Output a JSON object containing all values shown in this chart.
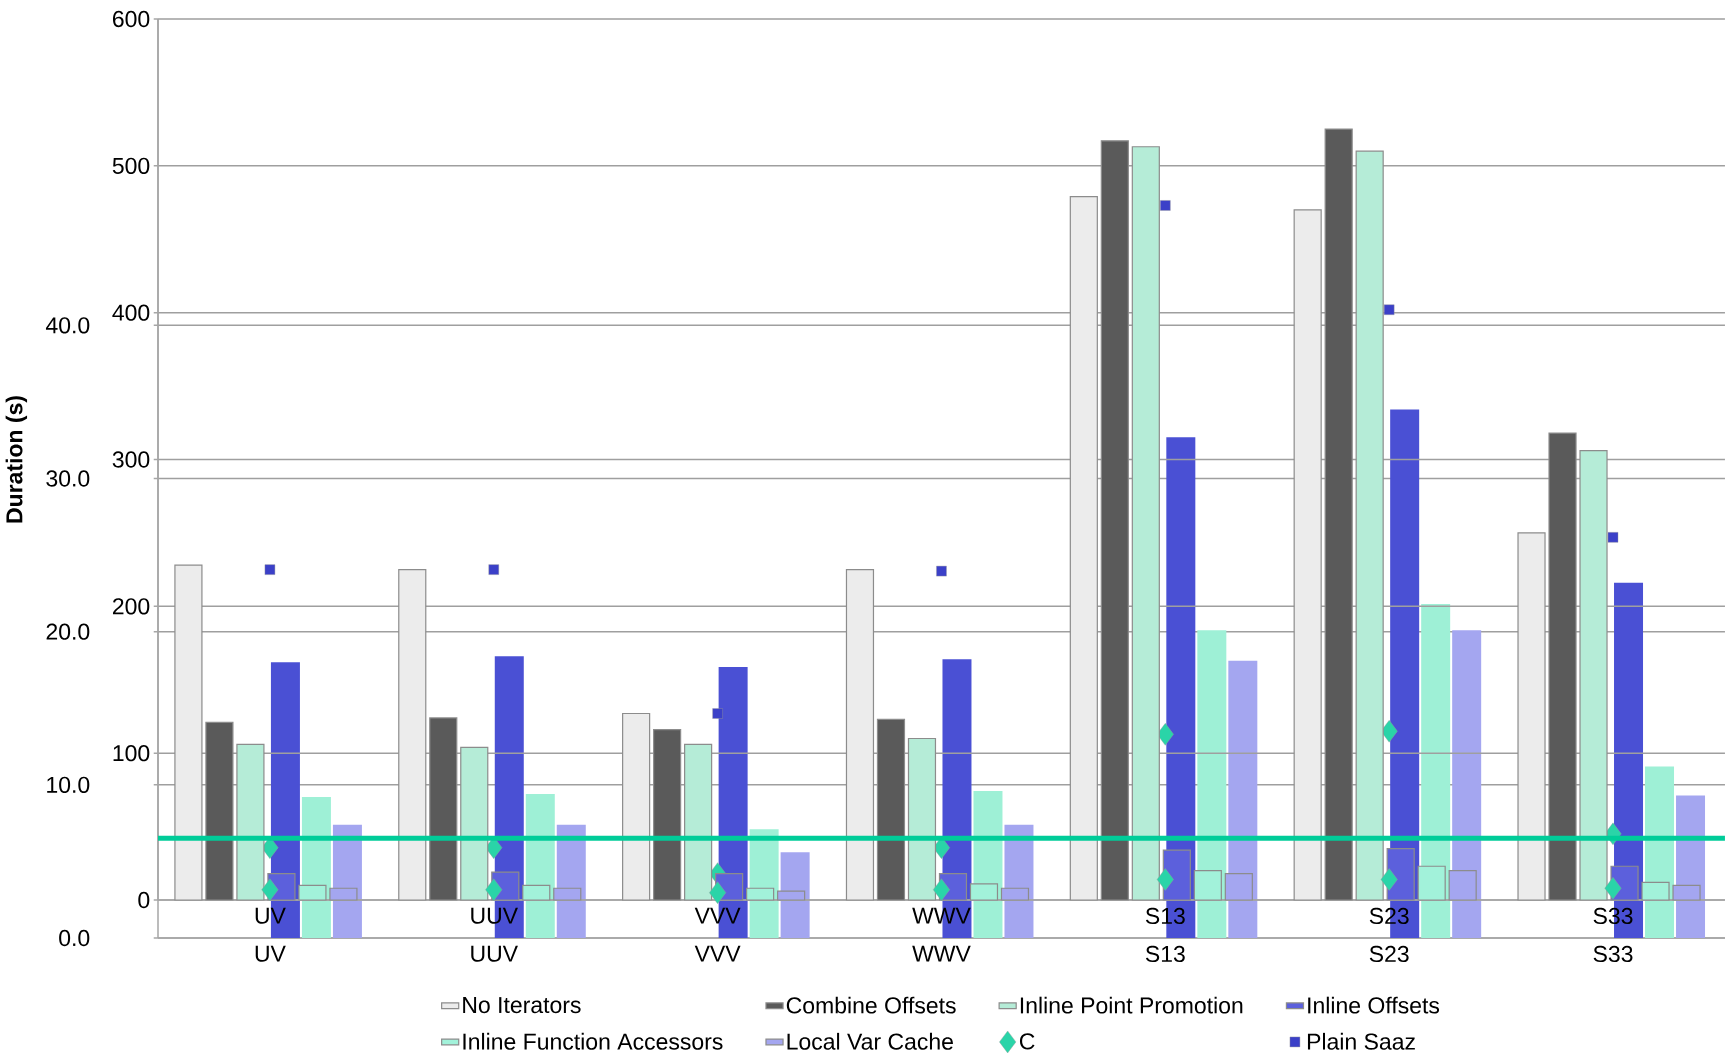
{
  "chart_data": [
    {
      "type": "bar",
      "ylabel": "Duration (s)",
      "categories": [
        "UV",
        "UUV",
        "VVV",
        "WWV",
        "S13",
        "S23",
        "S33"
      ],
      "ylim": [
        0,
        600
      ],
      "yticks": [
        0,
        100,
        200,
        300,
        400,
        500,
        600
      ],
      "grid": "y",
      "legend": "bottom",
      "series": [
        {
          "name": "No Iterators",
          "color": "#ececec",
          "values": [
            228,
            225,
            127,
            225,
            479,
            470,
            250
          ]
        },
        {
          "name": "Combine Offsets",
          "color": "#5a5a5a",
          "values": [
            121,
            124,
            116,
            123,
            517,
            525,
            318
          ]
        },
        {
          "name": "Inline Point Promotion",
          "color": "#b5ecd7",
          "values": [
            106,
            104,
            106,
            110,
            513,
            510,
            306
          ]
        },
        {
          "name": "Inline Offsets",
          "color": "#5c60dc",
          "values": [
            18,
            19,
            18,
            18,
            34,
            35,
            23
          ]
        },
        {
          "name": "Inline Function Accessors",
          "color": "#a2f2da",
          "values": [
            10,
            10,
            8,
            11,
            20,
            23,
            12
          ]
        },
        {
          "name": "Local Var Cache",
          "color": "#a4a6f0",
          "values": [
            8,
            8,
            6,
            8,
            18,
            20,
            10
          ]
        },
        {
          "name": "C",
          "type": "scatter",
          "marker": "diamond",
          "color": "#2ad4a8",
          "values": [
            7,
            7,
            5,
            7,
            14,
            14,
            8
          ]
        },
        {
          "name": "Plain Saaz",
          "type": "scatter",
          "marker": "square",
          "color": "#3b40c8",
          "values": [
            225,
            225,
            127,
            224,
            473,
            402,
            247
          ]
        }
      ],
      "ref_lines": [
        {
          "axis": "y",
          "value": 42,
          "color": "#00cc99"
        }
      ]
    },
    {
      "type": "bar",
      "categories": [
        "UV",
        "UUV",
        "VVV",
        "WWV",
        "S13",
        "S23",
        "S33"
      ],
      "ylim": [
        0,
        60
      ],
      "yticks": [
        {
          "value": 0,
          "label": "0.0"
        },
        {
          "value": 10,
          "label": "10.0"
        },
        {
          "value": 20,
          "label": "20.0"
        },
        {
          "value": 30,
          "label": "30.0"
        },
        {
          "value": 40,
          "label": "40.0"
        }
      ],
      "grid": "y",
      "series": [
        {
          "color": "#ececec",
          "values": [
            null,
            null,
            null,
            null,
            null,
            null,
            null
          ]
        },
        {
          "color": "#4a4a4a",
          "values": [
            null,
            null,
            null,
            null,
            null,
            null,
            null
          ]
        },
        {
          "color": "#aee6d0",
          "values": [
            null,
            null,
            null,
            null,
            null,
            null,
            null
          ]
        },
        {
          "color": "#4a50d4",
          "values": [
            18.0,
            18.4,
            17.7,
            18.2,
            32.7,
            34.5,
            23.2
          ]
        },
        {
          "color": "#9ef0d6",
          "values": [
            9.2,
            9.4,
            7.1,
            9.6,
            20.1,
            21.8,
            11.2
          ]
        },
        {
          "color": "#a4a6f0",
          "values": [
            7.4,
            7.4,
            5.6,
            7.4,
            18.1,
            20.1,
            9.3
          ]
        },
        {
          "type": "scatter",
          "marker": "diamond",
          "color": "#2ad4a8",
          "values": [
            5.9,
            5.9,
            4.2,
            5.9,
            13.3,
            13.5,
            6.8
          ]
        }
      ]
    }
  ]
}
